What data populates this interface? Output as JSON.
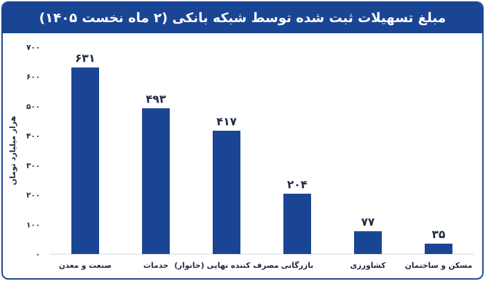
{
  "chart_data": {
    "type": "bar",
    "title": "مبلغ تسهیلات ثبت شده توسط شبکه بانکی (۲ ماه نخست ۱۴۰۵)",
    "ylabel": "هزار میلیارد تومان",
    "xlabel": "",
    "ylim": [
      0,
      700
    ],
    "yticks": [
      0,
      100,
      200,
      300,
      400,
      500,
      600,
      700
    ],
    "ytick_labels": [
      "۰",
      "۱۰۰",
      "۲۰۰",
      "۳۰۰",
      "۴۰۰",
      "۵۰۰",
      "۶۰۰",
      "۷۰۰"
    ],
    "categories": [
      "صنعت و معدن",
      "خدمات",
      "مصرف کننده نهایی (خانوار)",
      "بازرگانی",
      "کشاورزی",
      "مسکن و ساختمان"
    ],
    "values": [
      631,
      493,
      417,
      204,
      77,
      35
    ],
    "value_labels": [
      "۶۳۱",
      "۴۹۳",
      "۴۱۷",
      "۲۰۴",
      "۷۷",
      "۳۵"
    ],
    "grid": false,
    "colors": {
      "bar": "#1a4595",
      "title_bg": "#1a4595",
      "text": "#1f2a44",
      "axis": "#cfd6e4"
    }
  }
}
